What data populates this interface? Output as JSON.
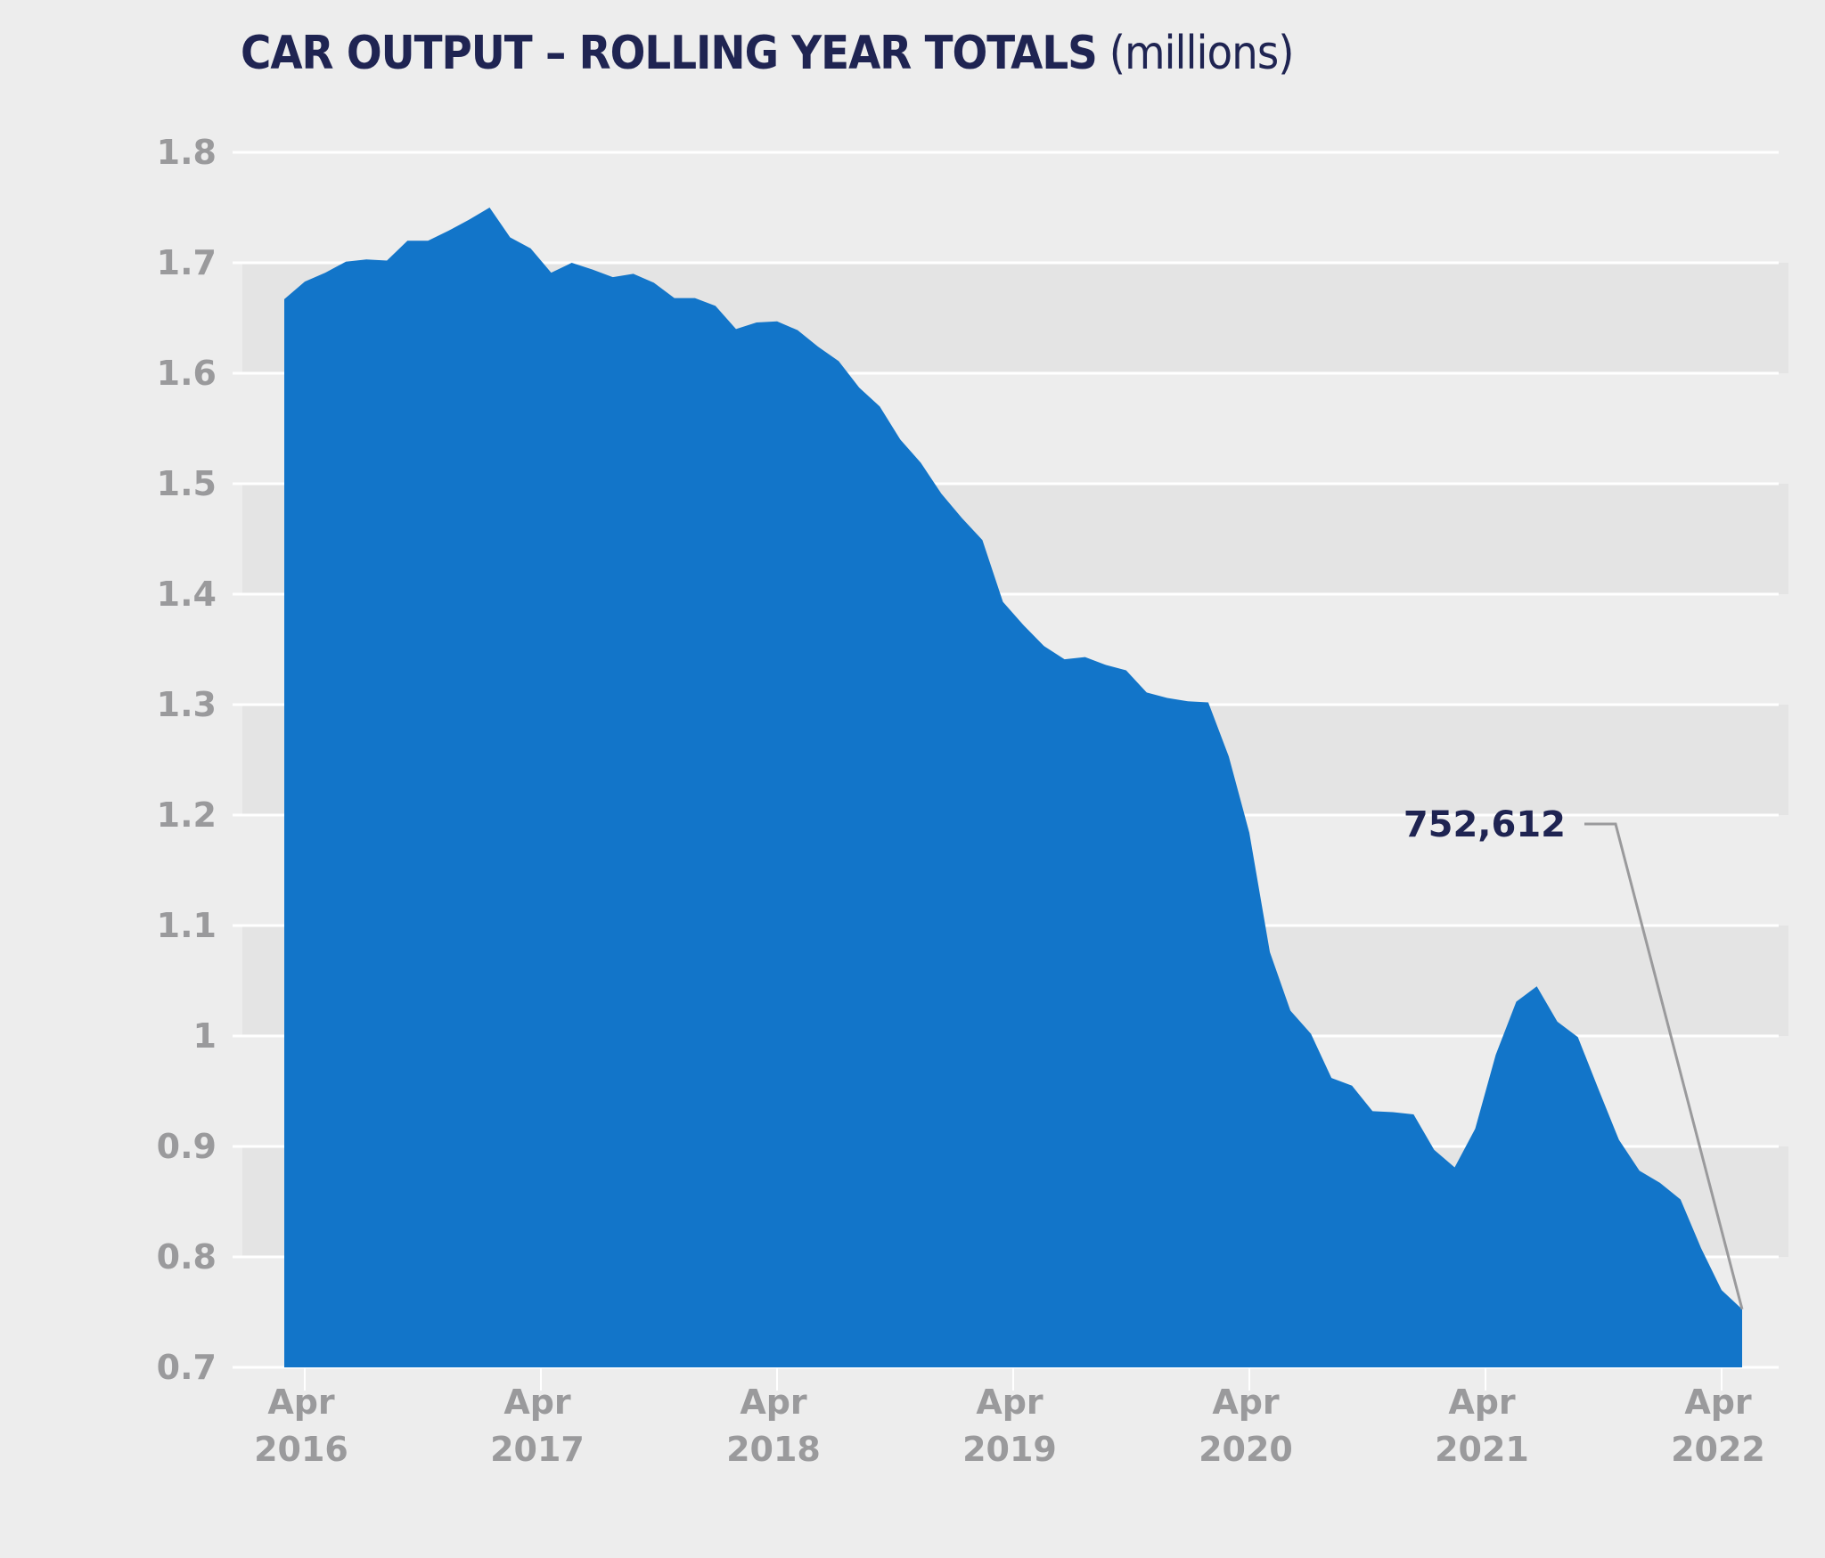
{
  "title": {
    "main": "CAR OUTPUT – ROLLING YEAR TOTALS",
    "unit": "(millions)"
  },
  "colors": {
    "fill": "#1275c9",
    "title": "#1f2452",
    "axis_text": "#9a9a9c",
    "band": "#e4e4e4",
    "background": "#ededed",
    "grid": "#ffffff"
  },
  "chart_data": {
    "type": "area",
    "title": "CAR OUTPUT – ROLLING YEAR TOTALS (millions)",
    "xlabel": "",
    "ylabel": "",
    "ylim": [
      0.7,
      1.8
    ],
    "y_ticks": [
      "1.8",
      "1.7",
      "1.6",
      "1.5",
      "1.4",
      "1.3",
      "1.2",
      "1.1",
      "1",
      "0.9",
      "0.8",
      "0.7"
    ],
    "x_ticks": [
      {
        "month": "Apr",
        "year": "2016"
      },
      {
        "month": "Apr",
        "year": "2017"
      },
      {
        "month": "Apr",
        "year": "2018"
      },
      {
        "month": "Apr",
        "year": "2019"
      },
      {
        "month": "Apr",
        "year": "2020"
      },
      {
        "month": "Apr",
        "year": "2021"
      },
      {
        "month": "Apr",
        "year": "2022"
      }
    ],
    "grid": true,
    "alternating_bands": true,
    "values": [
      1.667,
      1.683,
      1.691,
      1.701,
      1.703,
      1.702,
      1.72,
      1.72,
      1.729,
      1.739,
      1.75,
      1.723,
      1.713,
      1.691,
      1.7,
      1.694,
      1.687,
      1.69,
      1.682,
      1.668,
      1.668,
      1.661,
      1.64,
      1.646,
      1.647,
      1.639,
      1.624,
      1.611,
      1.587,
      1.57,
      1.54,
      1.519,
      1.491,
      1.469,
      1.449,
      1.393,
      1.372,
      1.353,
      1.341,
      1.343,
      1.336,
      1.331,
      1.311,
      1.306,
      1.303,
      1.302,
      1.253,
      1.184,
      1.076,
      1.023,
      1.002,
      0.962,
      0.955,
      0.932,
      0.931,
      0.929,
      0.897,
      0.881,
      0.916,
      0.983,
      1.031,
      1.045,
      1.013,
      0.999,
      0.952,
      0.906,
      0.878,
      0.867,
      0.852,
      0.808,
      0.77,
      0.7526
    ],
    "annotation": {
      "label": "752,612",
      "value": 0.752612
    }
  }
}
